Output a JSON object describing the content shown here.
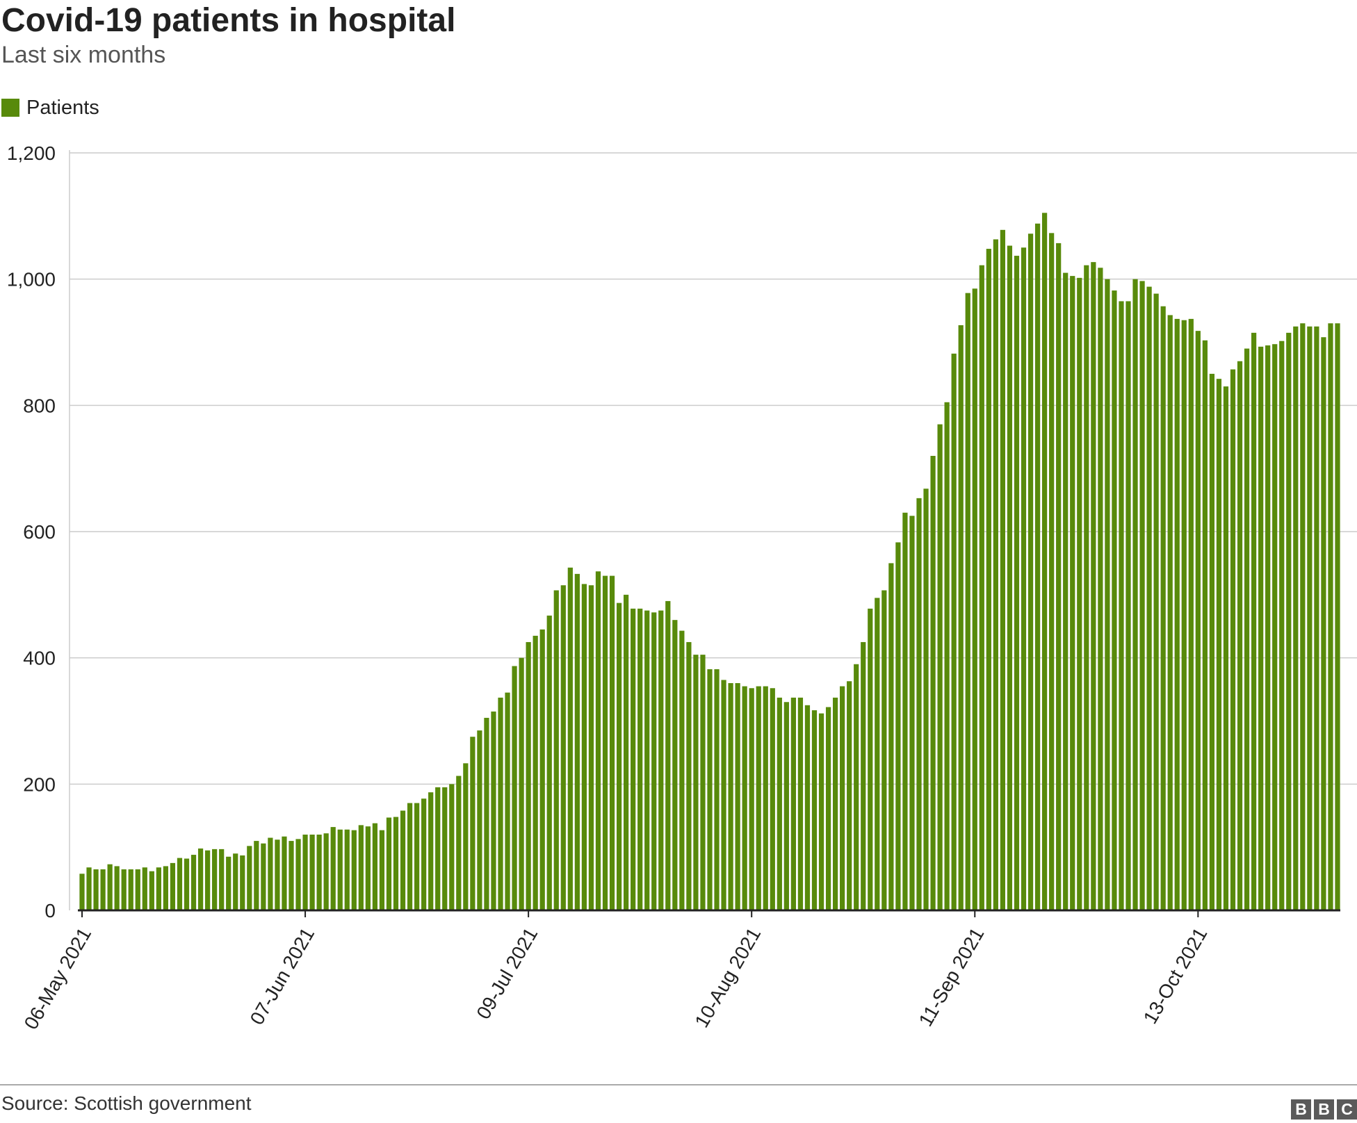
{
  "chart_data": {
    "type": "bar",
    "title": "Covid-19 patients in hospital",
    "subtitle": "Last six months",
    "source": "Source: Scottish government",
    "legend": {
      "position": "top-left",
      "entries": [
        {
          "name": "Patients",
          "color": "#588a0b"
        }
      ]
    },
    "ylim": [
      0,
      1200
    ],
    "yticks": [
      0,
      200,
      400,
      600,
      800,
      1000,
      1200
    ],
    "ytick_labels": [
      "0",
      "200",
      "400",
      "600",
      "800",
      "1,000",
      "1,200"
    ],
    "grid": true,
    "x_start": "2021-05-06",
    "x_tick_labels": [
      "06-May 2021",
      "07-Jun 2021",
      "09-Jul 2021",
      "10-Aug 2021",
      "11-Sep 2021",
      "13-Oct 2021"
    ],
    "x_tick_dates": [
      "2021-05-06",
      "2021-06-07",
      "2021-07-09",
      "2021-08-10",
      "2021-09-11",
      "2021-10-13"
    ],
    "series": [
      {
        "name": "Patients",
        "color": "#588a0b",
        "values": [
          58,
          68,
          65,
          65,
          73,
          70,
          65,
          65,
          65,
          68,
          62,
          68,
          70,
          75,
          83,
          82,
          88,
          98,
          95,
          97,
          97,
          85,
          90,
          87,
          102,
          110,
          106,
          115,
          112,
          117,
          110,
          113,
          120,
          120,
          120,
          122,
          132,
          128,
          128,
          127,
          135,
          133,
          138,
          127,
          147,
          148,
          158,
          170,
          170,
          177,
          187,
          195,
          195,
          200,
          213,
          233,
          275,
          285,
          305,
          315,
          337,
          345,
          387,
          400,
          425,
          435,
          445,
          467,
          507,
          515,
          543,
          533,
          517,
          515,
          537,
          530,
          530,
          487,
          500,
          478,
          478,
          475,
          472,
          475,
          490,
          460,
          443,
          425,
          405,
          405,
          382,
          382,
          365,
          360,
          360,
          355,
          352,
          355,
          355,
          352,
          337,
          330,
          337,
          337,
          325,
          317,
          312,
          322,
          337,
          355,
          363,
          390,
          425,
          478,
          495,
          507,
          550,
          583,
          630,
          625,
          653,
          668,
          720,
          770,
          805,
          882,
          927,
          978,
          985,
          1022,
          1048,
          1063,
          1078,
          1053,
          1037,
          1050,
          1072,
          1088,
          1105,
          1073,
          1057,
          1010,
          1005,
          1002,
          1022,
          1027,
          1018,
          1000,
          982,
          965,
          965,
          1000,
          997,
          988,
          977,
          957,
          943,
          937,
          935,
          937,
          918,
          903,
          850,
          842,
          830,
          857,
          870,
          890,
          915,
          893,
          895,
          897,
          902,
          915,
          925,
          930,
          925,
          925,
          908,
          930,
          930
        ]
      }
    ]
  },
  "branding": {
    "logo_letters": [
      "B",
      "B",
      "C"
    ]
  }
}
